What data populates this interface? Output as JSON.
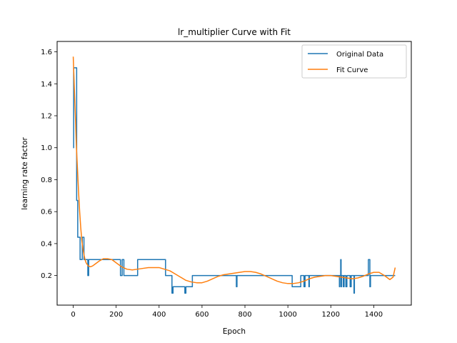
{
  "chart_data": {
    "type": "line",
    "title": "lr_multiplier Curve with Fit",
    "xlabel": "Epoch",
    "ylabel": "learning rate factor",
    "xlim": [
      -75,
      1575
    ],
    "ylim": [
      0.015,
      1.665
    ],
    "xticks": [
      0,
      200,
      400,
      600,
      800,
      1000,
      1200,
      1400
    ],
    "yticks": [
      0.2,
      0.4,
      0.6,
      0.8,
      1.0,
      1.2,
      1.4,
      1.6
    ],
    "ytick_labels": [
      "0.2",
      "0.4",
      "0.6",
      "0.8",
      "1.0",
      "1.2",
      "1.4",
      "1.6"
    ],
    "grid": false,
    "legend_position": "top-right",
    "series": [
      {
        "name": "Original Data",
        "color": "#1f77b4",
        "step": true,
        "x": [
          0,
          2,
          6,
          16,
          19,
          21,
          24,
          28,
          32,
          42,
          48,
          50,
          55,
          58,
          65,
          68,
          70,
          72,
          75,
          78,
          85,
          95,
          110,
          130,
          160,
          200,
          215,
          220,
          224,
          228,
          232,
          236,
          240,
          243,
          300,
          430,
          455,
          460,
          465,
          470,
          480,
          500,
          520,
          525,
          530,
          555,
          700,
          760,
          763,
          766,
          770,
          900,
          1020,
          1060,
          1075,
          1080,
          1085,
          1090,
          1095,
          1098,
          1100,
          1105,
          1200,
          1240,
          1242,
          1246,
          1248,
          1250,
          1252,
          1256,
          1258,
          1262,
          1266,
          1270,
          1275,
          1280,
          1285,
          1290,
          1295,
          1300,
          1305,
          1308,
          1310,
          1312,
          1320,
          1350,
          1370,
          1375,
          1380,
          1382,
          1385,
          1500
        ],
        "y": [
          1.0,
          1.5,
          1.5,
          0.67,
          0.67,
          0.44,
          0.44,
          0.44,
          0.3,
          0.44,
          0.44,
          0.3,
          0.3,
          0.3,
          0.3,
          0.2,
          0.2,
          0.3,
          0.3,
          0.3,
          0.3,
          0.3,
          0.3,
          0.3,
          0.3,
          0.3,
          0.3,
          0.2,
          0.2,
          0.3,
          0.3,
          0.2,
          0.2,
          0.2,
          0.3,
          0.2,
          0.2,
          0.09,
          0.13,
          0.13,
          0.13,
          0.13,
          0.09,
          0.13,
          0.13,
          0.2,
          0.2,
          0.13,
          0.2,
          0.2,
          0.2,
          0.2,
          0.13,
          0.2,
          0.13,
          0.2,
          0.2,
          0.2,
          0.2,
          0.13,
          0.2,
          0.2,
          0.2,
          0.13,
          0.2,
          0.3,
          0.13,
          0.2,
          0.2,
          0.2,
          0.13,
          0.2,
          0.2,
          0.13,
          0.2,
          0.2,
          0.2,
          0.13,
          0.2,
          0.2,
          0.2,
          0.09,
          0.2,
          0.2,
          0.2,
          0.2,
          0.2,
          0.3,
          0.3,
          0.13,
          0.2,
          0.2
        ]
      },
      {
        "name": "Fit Curve",
        "color": "#ff7f0e",
        "step": false,
        "x": [
          0,
          5,
          10,
          15,
          20,
          25,
          30,
          35,
          40,
          45,
          50,
          55,
          60,
          70,
          80,
          90,
          100,
          120,
          140,
          160,
          180,
          200,
          225,
          250,
          275,
          300,
          325,
          350,
          375,
          400,
          425,
          450,
          475,
          500,
          525,
          550,
          575,
          600,
          625,
          650,
          675,
          700,
          725,
          750,
          775,
          800,
          825,
          850,
          875,
          900,
          925,
          950,
          975,
          1000,
          1025,
          1050,
          1075,
          1100,
          1125,
          1150,
          1175,
          1200,
          1225,
          1250,
          1275,
          1300,
          1325,
          1350,
          1375,
          1400,
          1425,
          1450,
          1475,
          1490,
          1500
        ],
        "y": [
          1.57,
          1.38,
          1.2,
          1.0,
          0.86,
          0.72,
          0.6,
          0.5,
          0.42,
          0.37,
          0.33,
          0.3,
          0.28,
          0.26,
          0.255,
          0.26,
          0.27,
          0.29,
          0.305,
          0.305,
          0.3,
          0.28,
          0.255,
          0.24,
          0.235,
          0.24,
          0.245,
          0.25,
          0.25,
          0.25,
          0.24,
          0.23,
          0.21,
          0.19,
          0.17,
          0.16,
          0.155,
          0.155,
          0.165,
          0.18,
          0.195,
          0.205,
          0.21,
          0.215,
          0.22,
          0.225,
          0.225,
          0.22,
          0.21,
          0.195,
          0.18,
          0.165,
          0.155,
          0.15,
          0.15,
          0.155,
          0.165,
          0.18,
          0.19,
          0.195,
          0.2,
          0.2,
          0.195,
          0.19,
          0.185,
          0.18,
          0.185,
          0.195,
          0.21,
          0.22,
          0.22,
          0.2,
          0.175,
          0.19,
          0.25
        ]
      }
    ]
  }
}
